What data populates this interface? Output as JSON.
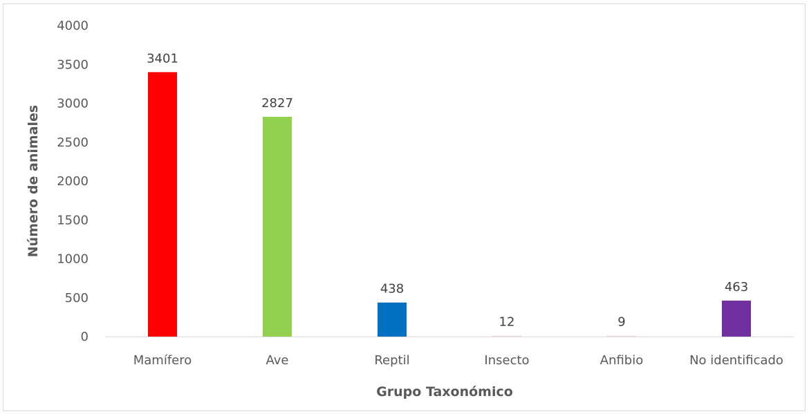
{
  "chart_data": {
    "type": "bar",
    "title": "",
    "xlabel": "Grupo Taxonómico",
    "ylabel": "Número de animales",
    "categories": [
      "Mamífero",
      "Ave",
      "Reptil",
      "Insecto",
      "Anfibio",
      "No identificado"
    ],
    "values": [
      3401,
      2827,
      438,
      12,
      9,
      463
    ],
    "colors": [
      "#ff0000",
      "#92d050",
      "#0070c0",
      "#f2dcdb",
      "#f2dcdb",
      "#7030a0"
    ],
    "ylim": [
      0,
      4000
    ],
    "yticks": [
      0,
      500,
      1000,
      1500,
      2000,
      2500,
      3000,
      3500,
      4000
    ],
    "grid": false,
    "legend": "none",
    "data_labels": true
  }
}
